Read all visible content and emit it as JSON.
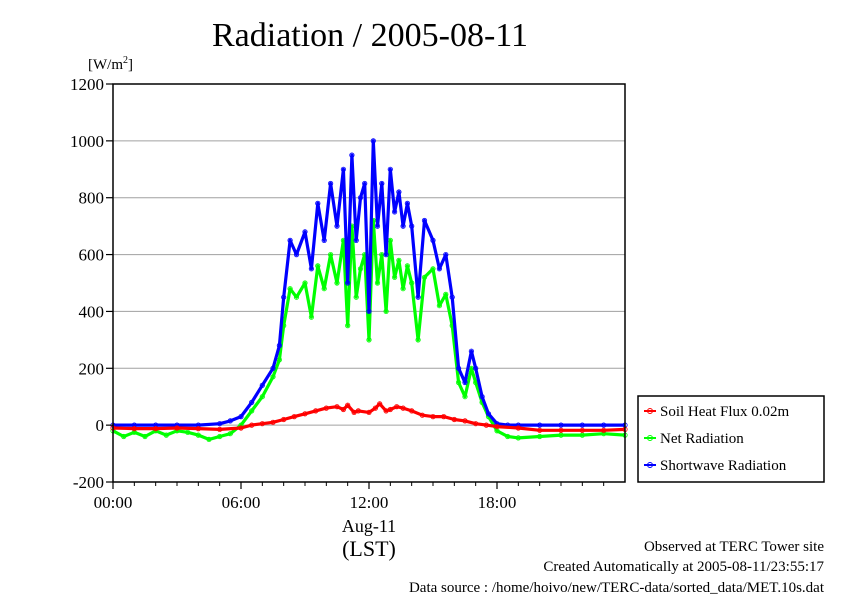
{
  "chart_data": {
    "type": "line",
    "title": "Radiation / 2005-08-11",
    "y_unit": "[W/m",
    "y_unit_sup": "2",
    "y_unit_close": "]",
    "ylim": [
      -200,
      1200
    ],
    "yticks": [
      -200,
      0,
      200,
      400,
      600,
      800,
      1000,
      1200
    ],
    "ytick_labels": [
      "-200",
      "0",
      "200",
      "400",
      "600",
      "800",
      "1000",
      "1200"
    ],
    "xlim": [
      0,
      24
    ],
    "xticks": [
      0,
      6,
      12,
      18
    ],
    "xtick_labels": [
      "00:00",
      "06:00",
      "12:00",
      "18:00"
    ],
    "x_date_label": "Aug-11",
    "x_tz_label": "(LST)",
    "grid": "horizontal",
    "legend_position": "right",
    "series": [
      {
        "name": "Soil Heat Flux 0.02m",
        "color": "#ff0000",
        "x": [
          0,
          1,
          2,
          3,
          4,
          5,
          6,
          6.5,
          7,
          7.5,
          8,
          8.5,
          9,
          9.5,
          10,
          10.5,
          10.8,
          11,
          11.3,
          11.5,
          12,
          12.3,
          12.5,
          12.8,
          13,
          13.3,
          13.6,
          14,
          14.5,
          15,
          15.5,
          16,
          16.5,
          17,
          17.5,
          18,
          19,
          20,
          21,
          22,
          23,
          24
        ],
        "values": [
          -10,
          -12,
          -12,
          -10,
          -12,
          -15,
          -10,
          0,
          5,
          10,
          20,
          30,
          40,
          50,
          60,
          65,
          55,
          70,
          45,
          50,
          45,
          60,
          75,
          50,
          55,
          65,
          60,
          50,
          35,
          30,
          30,
          20,
          15,
          5,
          0,
          -5,
          -10,
          -18,
          -18,
          -18,
          -18,
          -15
        ]
      },
      {
        "name": "Net Radiation",
        "color": "#00ff00",
        "x": [
          0,
          0.5,
          1,
          1.5,
          2,
          2.5,
          3,
          3.5,
          4,
          4.5,
          5,
          5.5,
          6,
          6.5,
          7,
          7.5,
          7.8,
          8,
          8.3,
          8.6,
          9,
          9.3,
          9.6,
          9.9,
          10.2,
          10.5,
          10.8,
          11,
          11.2,
          11.4,
          11.6,
          11.8,
          12,
          12.2,
          12.4,
          12.6,
          12.8,
          13,
          13.2,
          13.4,
          13.6,
          13.8,
          14,
          14.3,
          14.6,
          15,
          15.3,
          15.6,
          15.9,
          16.2,
          16.5,
          16.8,
          17,
          17.3,
          17.6,
          18,
          18.5,
          19,
          20,
          21,
          22,
          23,
          24
        ],
        "values": [
          -20,
          -40,
          -25,
          -40,
          -20,
          -35,
          -20,
          -25,
          -35,
          -50,
          -40,
          -30,
          0,
          50,
          100,
          170,
          230,
          350,
          480,
          450,
          500,
          380,
          560,
          480,
          600,
          500,
          650,
          350,
          700,
          450,
          550,
          600,
          300,
          720,
          500,
          600,
          400,
          650,
          520,
          580,
          480,
          560,
          500,
          300,
          520,
          550,
          420,
          460,
          350,
          150,
          100,
          200,
          150,
          80,
          30,
          -20,
          -40,
          -45,
          -40,
          -35,
          -35,
          -30,
          -35
        ]
      },
      {
        "name": "Shortwave Radiation",
        "color": "#0000ff",
        "x": [
          0,
          1,
          2,
          3,
          4,
          5,
          5.5,
          6,
          6.5,
          7,
          7.5,
          7.8,
          8,
          8.3,
          8.6,
          9,
          9.3,
          9.6,
          9.9,
          10.2,
          10.5,
          10.8,
          11,
          11.2,
          11.4,
          11.6,
          11.8,
          12,
          12.2,
          12.4,
          12.6,
          12.8,
          13,
          13.2,
          13.4,
          13.6,
          13.8,
          14,
          14.3,
          14.6,
          15,
          15.3,
          15.6,
          15.9,
          16.2,
          16.5,
          16.8,
          17,
          17.3,
          17.6,
          18,
          18.5,
          19,
          20,
          21,
          22,
          23,
          24
        ],
        "values": [
          0,
          0,
          0,
          0,
          0,
          5,
          15,
          30,
          80,
          140,
          200,
          280,
          450,
          650,
          600,
          680,
          550,
          780,
          650,
          850,
          700,
          900,
          500,
          950,
          650,
          800,
          850,
          400,
          1000,
          700,
          850,
          600,
          900,
          750,
          820,
          700,
          780,
          700,
          450,
          720,
          650,
          550,
          600,
          450,
          200,
          150,
          260,
          200,
          100,
          40,
          5,
          0,
          0,
          0,
          0,
          0,
          0,
          0
        ]
      }
    ]
  },
  "footer": {
    "line1": "Observed at TERC Tower site",
    "line2": "Created Automatically at 2005-08-11/23:55:17",
    "line3": "Data source : /home/hoivo/new/TERC-data/sorted_data/MET.10s.dat"
  }
}
